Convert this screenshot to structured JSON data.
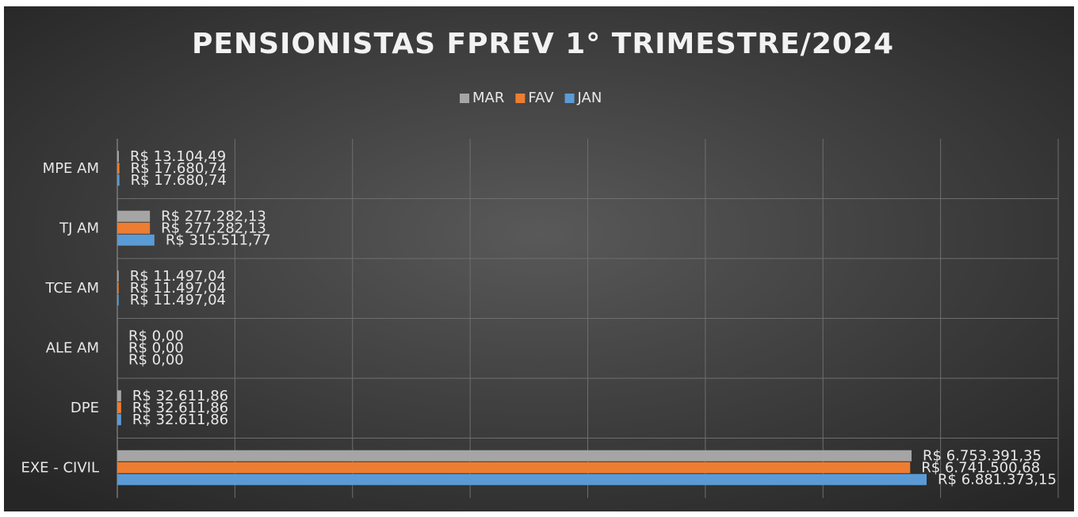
{
  "chart_data": {
    "type": "hbar",
    "title": "PENSIONISTAS FPREV 1° TRIMESTRE/2024",
    "categories": [
      "MPE AM",
      "TJ AM",
      "TCE AM",
      "ALE AM",
      "DPE",
      "EXE - CIVIL"
    ],
    "series": [
      {
        "name": "MAR",
        "color": "#a5a5a5",
        "values": [
          13104.49,
          277282.13,
          11497.04,
          0,
          32611.86,
          6753391.35
        ],
        "value_labels": [
          "R$ 13.104,49",
          "R$ 277.282,13",
          "R$ 11.497,04",
          "R$ 0,00",
          "R$ 32.611,86",
          "R$ 6.753.391,35"
        ]
      },
      {
        "name": "FAV",
        "color": "#ed7d31",
        "values": [
          17680.74,
          277282.13,
          11497.04,
          0,
          32611.86,
          6741500.68
        ],
        "value_labels": [
          "R$ 17.680,74",
          "R$ 277.282,13",
          "R$ 11.497,04",
          "R$ 0,00",
          "R$ 32.611,86",
          "R$ 6.741.500,68"
        ]
      },
      {
        "name": "JAN",
        "color": "#5b9bd5",
        "values": [
          17680.74,
          315511.77,
          11497.04,
          0,
          32611.86,
          6881373.15
        ],
        "value_labels": [
          "R$ 17.680,74",
          "R$ 315.511,77",
          "R$ 11.497,04",
          "R$ 0,00",
          "R$ 32.611,86",
          "R$ 6.881.373,15"
        ]
      }
    ],
    "xlim": [
      0,
      8000000
    ],
    "xticks": [
      0,
      1000000,
      2000000,
      3000000,
      4000000,
      5000000,
      6000000,
      7000000,
      8000000
    ],
    "grid": true,
    "legend": "top"
  }
}
